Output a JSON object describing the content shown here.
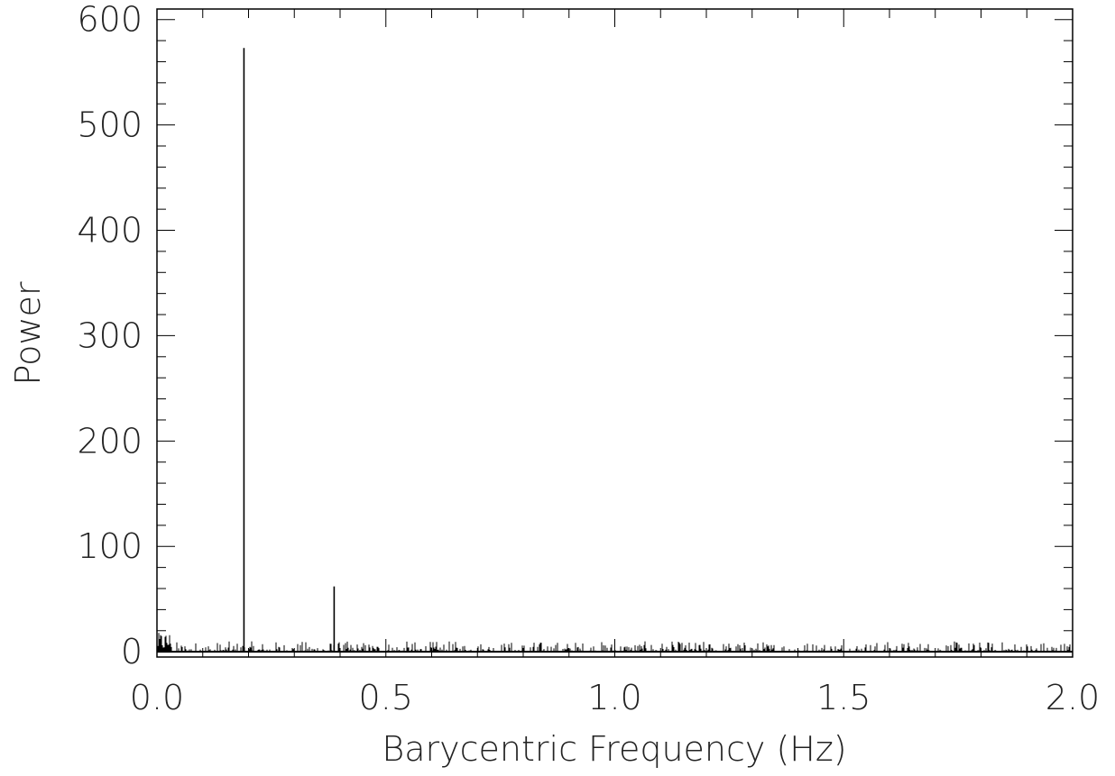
{
  "chart_data": {
    "type": "line",
    "title": "",
    "xlabel": "Barycentric Frequency (Hz)",
    "ylabel": "Power",
    "xlim": [
      0.0,
      2.0
    ],
    "ylim": [
      -5,
      610
    ],
    "x_ticks": [
      0.0,
      0.5,
      1.0,
      1.5,
      2.0
    ],
    "x_tick_labels": [
      "0.0",
      "0.5",
      "1.0",
      "1.5",
      "2.0"
    ],
    "y_ticks": [
      0,
      100,
      200,
      300,
      400,
      500,
      600
    ],
    "y_tick_labels": [
      "0",
      "100",
      "200",
      "300",
      "400",
      "500",
      "600"
    ],
    "grid": false,
    "legend": "none",
    "colors": {
      "line": "#000000",
      "text": "#222222",
      "frame": "#000000"
    },
    "series": [
      {
        "peaks": [
          {
            "x": 0.19,
            "y": 573
          },
          {
            "x": 0.387,
            "y": 62
          }
        ],
        "noise_level_max": 10
      }
    ]
  }
}
